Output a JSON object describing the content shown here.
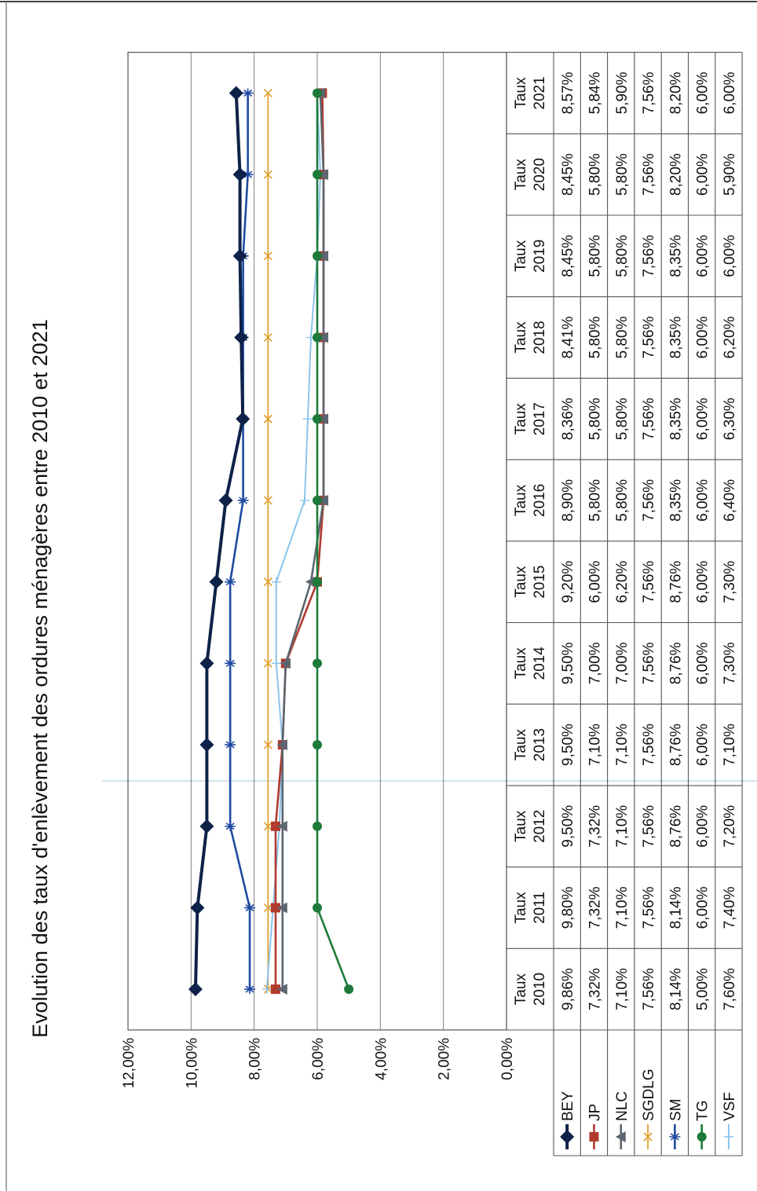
{
  "colors": {
    "frame": "#333333",
    "scan_line": "#cfe3ee",
    "BEY": "#0e2148",
    "JP": "#b03a2e",
    "NLC": "#5c6670",
    "SGDLG": "#e0a030",
    "SM": "#1f4aa0",
    "TG": "#1d7a3a",
    "VSF": "#8cc4ec"
  },
  "chart_data": {
    "type": "line",
    "title": "Evolution des taux d'enlèvement des ordures ménagères entre 2010 et 2021",
    "categories": [
      "Taux 2010",
      "Taux 2011",
      "Taux 2012",
      "Taux 2013",
      "Taux 2014",
      "Taux 2015",
      "Taux 2016",
      "Taux 2017",
      "Taux 2018",
      "Taux 2019",
      "Taux 2020",
      "Taux 2021"
    ],
    "category_lines": [
      [
        "Taux",
        "2010"
      ],
      [
        "Taux",
        "2011"
      ],
      [
        "Taux",
        "2012"
      ],
      [
        "Taux",
        "2013"
      ],
      [
        "Taux",
        "2014"
      ],
      [
        "Taux",
        "2015"
      ],
      [
        "Taux",
        "2016"
      ],
      [
        "Taux",
        "2017"
      ],
      [
        "Taux",
        "2018"
      ],
      [
        "Taux",
        "2019"
      ],
      [
        "Taux",
        "2020"
      ],
      [
        "Taux",
        "2021"
      ]
    ],
    "y_ticks": [
      "0,00%",
      "2,00%",
      "4,00%",
      "6,00%",
      "8,00%",
      "10,00%",
      "12,00%"
    ],
    "ylim": [
      0,
      12
    ],
    "grid": true,
    "legend": "data table with series keys",
    "series": [
      {
        "name": "BEY",
        "marker": "diamond",
        "values": [
          9.86,
          9.8,
          9.5,
          9.5,
          9.5,
          9.2,
          8.9,
          8.36,
          8.41,
          8.45,
          8.45,
          8.57
        ],
        "labels": [
          "9,86%",
          "9,80%",
          "9,50%",
          "9,50%",
          "9,50%",
          "9,20%",
          "8,90%",
          "8,36%",
          "8,41%",
          "8,45%",
          "8,45%",
          "8,57%"
        ]
      },
      {
        "name": "JP",
        "marker": "square",
        "values": [
          7.32,
          7.32,
          7.32,
          7.1,
          7.0,
          6.0,
          5.8,
          5.8,
          5.8,
          5.8,
          5.8,
          5.84
        ],
        "labels": [
          "7,32%",
          "7,32%",
          "7,32%",
          "7,10%",
          "7,00%",
          "6,00%",
          "5,80%",
          "5,80%",
          "5,80%",
          "5,80%",
          "5,80%",
          "5,84%"
        ]
      },
      {
        "name": "NLC",
        "marker": "triangle",
        "values": [
          7.1,
          7.1,
          7.1,
          7.1,
          7.0,
          6.2,
          5.8,
          5.8,
          5.8,
          5.8,
          5.8,
          5.9
        ],
        "labels": [
          "7,10%",
          "7,10%",
          "7,10%",
          "7,10%",
          "7,00%",
          "6,20%",
          "5,80%",
          "5,80%",
          "5,80%",
          "5,80%",
          "5,80%",
          "5,90%"
        ]
      },
      {
        "name": "SGDLG",
        "marker": "x",
        "values": [
          7.56,
          7.56,
          7.56,
          7.56,
          7.56,
          7.56,
          7.56,
          7.56,
          7.56,
          7.56,
          7.56,
          7.56
        ],
        "labels": [
          "7,56%",
          "7,56%",
          "7,56%",
          "7,56%",
          "7,56%",
          "7,56%",
          "7,56%",
          "7,56%",
          "7,56%",
          "7,56%",
          "7,56%",
          "7,56%"
        ]
      },
      {
        "name": "SM",
        "marker": "star",
        "values": [
          8.14,
          8.14,
          8.76,
          8.76,
          8.76,
          8.76,
          8.35,
          8.35,
          8.35,
          8.35,
          8.2,
          8.2
        ],
        "labels": [
          "8,14%",
          "8,14%",
          "8,76%",
          "8,76%",
          "8,76%",
          "8,76%",
          "8,35%",
          "8,35%",
          "8,35%",
          "8,35%",
          "8,20%",
          "8,20%"
        ]
      },
      {
        "name": "TG",
        "marker": "circle",
        "values": [
          5.0,
          6.0,
          6.0,
          6.0,
          6.0,
          6.0,
          6.0,
          6.0,
          6.0,
          6.0,
          6.0,
          6.0
        ],
        "labels": [
          "5,00%",
          "6,00%",
          "6,00%",
          "6,00%",
          "6,00%",
          "6,00%",
          "6,00%",
          "6,00%",
          "6,00%",
          "6,00%",
          "6,00%",
          "6,00%"
        ]
      },
      {
        "name": "VSF",
        "marker": "plus",
        "values": [
          7.6,
          7.4,
          7.2,
          7.1,
          7.3,
          7.3,
          6.4,
          6.3,
          6.2,
          6.0,
          5.9,
          6.0
        ],
        "labels": [
          "7,60%",
          "7,40%",
          "7,20%",
          "7,10%",
          "7,30%",
          "7,30%",
          "6,40%",
          "6,30%",
          "6,20%",
          "6,00%",
          "5,90%",
          "6,00%"
        ]
      }
    ]
  }
}
